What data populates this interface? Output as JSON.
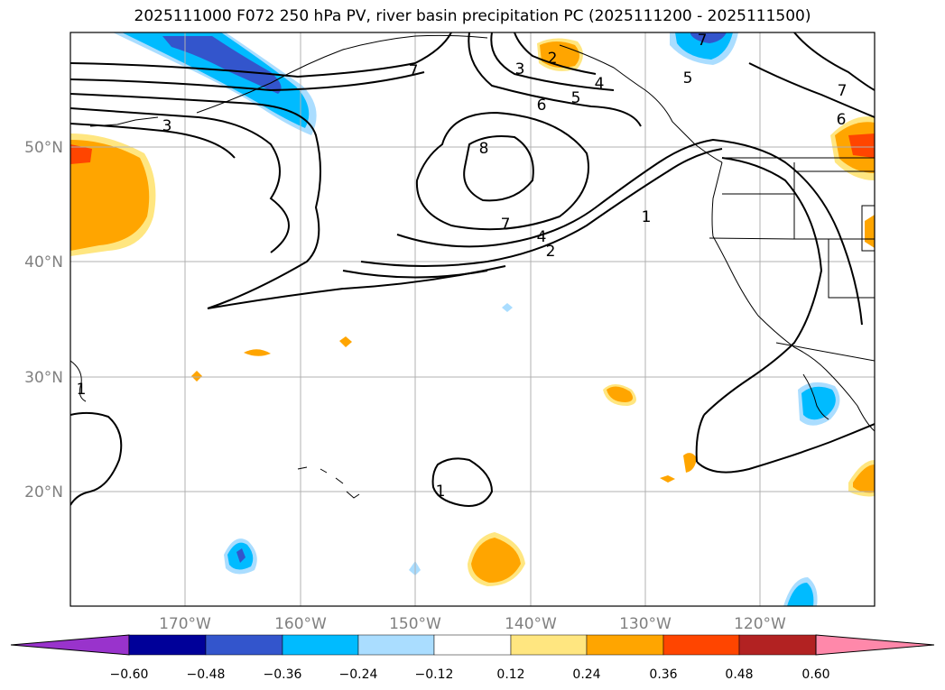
{
  "title": "2025111000 F072 250 hPa PV, river basin precipitation PC (2025111200 - 2025111500)",
  "map": {
    "lat_labels": [
      "50°N",
      "40°N",
      "30°N",
      "20°N"
    ],
    "lon_labels": [
      "170°W",
      "160°W",
      "150°W",
      "140°W",
      "130°W",
      "120°W"
    ],
    "contour_labels": [
      "3",
      "3",
      "2",
      "7",
      "7",
      "5",
      "6",
      "5",
      "6",
      "7",
      "8",
      "7",
      "4",
      "2",
      "1",
      "1",
      "1",
      "4"
    ],
    "contour_color": "#000000",
    "gridline_color": "#b0b0b0"
  },
  "colorbar": {
    "ticks": [
      "−0.60",
      "−0.48",
      "−0.36",
      "−0.24",
      "−0.12",
      "0.12",
      "0.24",
      "0.36",
      "0.48",
      "0.60"
    ],
    "colors": [
      "#9933cc",
      "#000099",
      "#3355cc",
      "#00bbff",
      "#aaddff",
      "#ffffff",
      "#ffe680",
      "#ffa500",
      "#ff4500",
      "#b22222",
      "#ff88aa"
    ]
  },
  "legend_icon_names": {
    "map": "map-panel",
    "colorbar": "colorbar"
  }
}
